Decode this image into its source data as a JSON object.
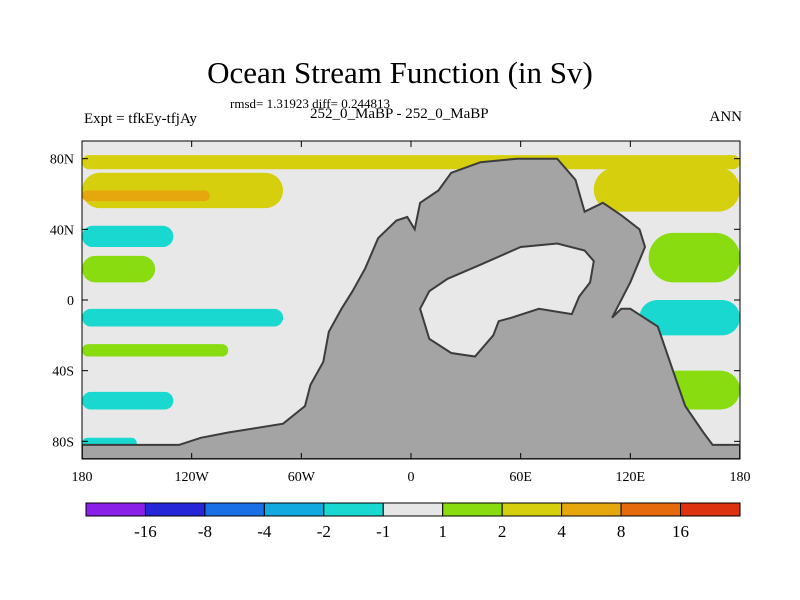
{
  "header": {
    "title": "Ocean Stream Function (in Sv)",
    "stats": "rmsd= 1.31923 diff= 0.244813",
    "experiment": "Expt = tfkEy-tfjAy",
    "period": "252_0_MaBP - 252_0_MaBP",
    "season": "ANN"
  },
  "chart_data": {
    "type": "heatmap",
    "title": "Ocean Stream Function (in Sv)",
    "xlabel": "",
    "ylabel": "",
    "xlim": [
      -180,
      180
    ],
    "ylim": [
      -90,
      90
    ],
    "x_ticks": [
      {
        "value": -180,
        "label": "180"
      },
      {
        "value": -120,
        "label": "120W"
      },
      {
        "value": -60,
        "label": "60W"
      },
      {
        "value": 0,
        "label": "0"
      },
      {
        "value": 60,
        "label": "60E"
      },
      {
        "value": 120,
        "label": "120E"
      },
      {
        "value": 180,
        "label": "180"
      }
    ],
    "y_ticks": [
      {
        "value": 80,
        "label": "80N"
      },
      {
        "value": 40,
        "label": "40N"
      },
      {
        "value": 0,
        "label": "0"
      },
      {
        "value": -40,
        "label": "40S"
      },
      {
        "value": -80,
        "label": "80S"
      }
    ],
    "colorbar": {
      "colors": [
        "#8a1fe8",
        "#2626d9",
        "#1a6fe6",
        "#12a8e0",
        "#18d8d0",
        "#e6e6e6",
        "#88dc10",
        "#d6cf0d",
        "#e6a60e",
        "#e46a0c",
        "#dc3210"
      ],
      "labels": [
        "-16",
        "-8",
        "-4",
        "-2",
        "-1",
        "1",
        "2",
        "4",
        "8",
        "16"
      ]
    },
    "land_color": "#a4a4a4",
    "ocean_neutral_color": "#e8e8e8",
    "land_regions": [
      {
        "name": "pangaea",
        "outline_lonlat": [
          [
            -127,
            -82
          ],
          [
            -115,
            -78
          ],
          [
            -100,
            -75
          ],
          [
            -70,
            -70
          ],
          [
            -58,
            -60
          ],
          [
            -55,
            -48
          ],
          [
            -48,
            -35
          ],
          [
            -45,
            -18
          ],
          [
            -38,
            -5
          ],
          [
            -32,
            5
          ],
          [
            -25,
            18
          ],
          [
            -18,
            35
          ],
          [
            -8,
            45
          ],
          [
            -2,
            47
          ],
          [
            2,
            40
          ],
          [
            5,
            55
          ],
          [
            15,
            62
          ],
          [
            22,
            72
          ],
          [
            38,
            78
          ],
          [
            58,
            80
          ],
          [
            80,
            80
          ],
          [
            90,
            68
          ],
          [
            95,
            50
          ],
          [
            105,
            55
          ],
          [
            115,
            48
          ],
          [
            125,
            40
          ],
          [
            128,
            30
          ],
          [
            120,
            10
          ],
          [
            110,
            -10
          ],
          [
            115,
            -5
          ],
          [
            120,
            -5
          ],
          [
            135,
            -15
          ],
          [
            140,
            -30
          ],
          [
            145,
            -45
          ],
          [
            150,
            -60
          ],
          [
            160,
            -75
          ],
          [
            165,
            -82
          ],
          [
            180,
            -82
          ],
          [
            180,
            -90
          ],
          [
            -180,
            -90
          ],
          [
            -180,
            -82
          ]
        ]
      },
      {
        "name": "tethys-sea",
        "outline_lonlat": [
          [
            22,
            -30
          ],
          [
            10,
            -22
          ],
          [
            5,
            -5
          ],
          [
            10,
            5
          ],
          [
            20,
            12
          ],
          [
            38,
            20
          ],
          [
            60,
            30
          ],
          [
            80,
            32
          ],
          [
            95,
            28
          ],
          [
            100,
            22
          ],
          [
            98,
            10
          ],
          [
            92,
            2
          ],
          [
            88,
            -8
          ],
          [
            70,
            -5
          ],
          [
            55,
            -10
          ],
          [
            48,
            -12
          ],
          [
            45,
            -20
          ],
          [
            35,
            -32
          ]
        ]
      }
    ],
    "contour_bands": [
      {
        "lon": [
          -180,
          180
        ],
        "lat": [
          74,
          82
        ],
        "value": 2.5
      },
      {
        "lon": [
          -180,
          -70
        ],
        "lat": [
          52,
          72
        ],
        "value": 2.5
      },
      {
        "lon": [
          -180,
          -110
        ],
        "lat": [
          56,
          62
        ],
        "value": 5
      },
      {
        "lon": [
          100,
          180
        ],
        "lat": [
          50,
          75
        ],
        "value": 2.5
      },
      {
        "lon": [
          -180,
          -130
        ],
        "lat": [
          30,
          42
        ],
        "value": -1.5
      },
      {
        "lon": [
          -180,
          -140
        ],
        "lat": [
          10,
          25
        ],
        "value": 1.5
      },
      {
        "lon": [
          -180,
          -70
        ],
        "lat": [
          -15,
          -5
        ],
        "value": -1.5
      },
      {
        "lon": [
          -180,
          -100
        ],
        "lat": [
          -32,
          -25
        ],
        "value": 1.5
      },
      {
        "lon": [
          -180,
          -130
        ],
        "lat": [
          -62,
          -52
        ],
        "value": -1.5
      },
      {
        "lon": [
          -180,
          -150
        ],
        "lat": [
          -84,
          -78
        ],
        "value": -1.5
      },
      {
        "lon": [
          125,
          180
        ],
        "lat": [
          -20,
          0
        ],
        "value": -1.5
      },
      {
        "lon": [
          135,
          180
        ],
        "lat": [
          -62,
          -40
        ],
        "value": 1.5
      },
      {
        "lon": [
          130,
          180
        ],
        "lat": [
          10,
          38
        ],
        "value": 1.5
      }
    ]
  }
}
